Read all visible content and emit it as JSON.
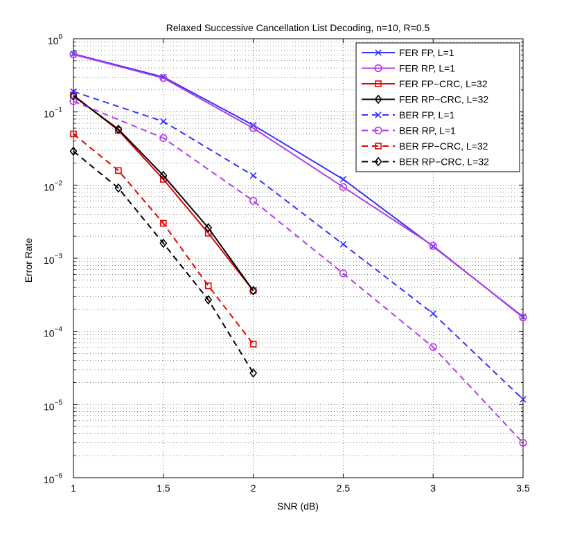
{
  "chart_data": {
    "type": "line",
    "title": "Relaxed Successive Cancellation List Decoding, n=10, R=0.5",
    "xlabel": "SNR (dB)",
    "ylabel": "Error Rate",
    "xlim": [
      1,
      3.5
    ],
    "ylim": [
      1e-06,
      1
    ],
    "yscale": "log",
    "grid": true,
    "legend_position": "top-right",
    "xticks": [
      {
        "value": 1,
        "label": "1"
      },
      {
        "value": 1.5,
        "label": "1.5"
      },
      {
        "value": 2,
        "label": "2"
      },
      {
        "value": 2.5,
        "label": "2.5"
      },
      {
        "value": 3,
        "label": "3"
      },
      {
        "value": 3.5,
        "label": "3.5"
      }
    ],
    "yticks": [
      {
        "exp": -6,
        "base": "10",
        "sup": "−6"
      },
      {
        "exp": -5,
        "base": "10",
        "sup": "−5"
      },
      {
        "exp": -4,
        "base": "10",
        "sup": "−4"
      },
      {
        "exp": -3,
        "base": "10",
        "sup": "−3"
      },
      {
        "exp": -2,
        "base": "10",
        "sup": "−2"
      },
      {
        "exp": -1,
        "base": "10",
        "sup": "−1"
      },
      {
        "exp": 0,
        "base": "10",
        "sup": "0"
      }
    ],
    "series": [
      {
        "name": "FER FP, L=1",
        "color": "#3333ff",
        "dash": "solid",
        "marker": "x",
        "x": [
          1,
          1.5,
          2,
          2.5,
          3,
          3.5
        ],
        "y": [
          0.62,
          0.3,
          0.066,
          0.012,
          0.00145,
          0.000158
        ]
      },
      {
        "name": "FER RP, L=1",
        "color": "#b43ce6",
        "dash": "solid",
        "marker": "o",
        "x": [
          1,
          1.5,
          2,
          2.5,
          3,
          3.5
        ],
        "y": [
          0.61,
          0.29,
          0.06,
          0.0094,
          0.00148,
          0.000155
        ]
      },
      {
        "name": "FER FP−CRC, L=32",
        "color": "#e60000",
        "dash": "solid",
        "marker": "s",
        "x": [
          1,
          1.25,
          1.5,
          1.75,
          2
        ],
        "y": [
          0.17,
          0.056,
          0.012,
          0.0022,
          0.00036
        ]
      },
      {
        "name": "FER RP−CRC, L=32",
        "color": "#000000",
        "dash": "solid",
        "marker": "d",
        "x": [
          1,
          1.25,
          1.5,
          1.75,
          2
        ],
        "y": [
          0.165,
          0.058,
          0.0135,
          0.0026,
          0.00036
        ]
      },
      {
        "name": "BER FP, L=1",
        "color": "#3333ff",
        "dash": "dashed",
        "marker": "x",
        "x": [
          1,
          1.5,
          2,
          2.5,
          3,
          3.5
        ],
        "y": [
          0.19,
          0.074,
          0.0135,
          0.00155,
          0.000175,
          1.18e-05
        ]
      },
      {
        "name": "BER RP, L=1",
        "color": "#b43ce6",
        "dash": "dashed",
        "marker": "o",
        "x": [
          1,
          1.5,
          2,
          2.5,
          3,
          3.5
        ],
        "y": [
          0.14,
          0.044,
          0.0061,
          0.00062,
          6.1e-05,
          3e-06
        ]
      },
      {
        "name": "BER FP−CRC, L=32",
        "color": "#e60000",
        "dash": "dashed",
        "marker": "s",
        "x": [
          1,
          1.25,
          1.5,
          1.75,
          2
        ],
        "y": [
          0.05,
          0.0158,
          0.003,
          0.00042,
          6.7e-05
        ]
      },
      {
        "name": "BER RP−CRC, L=32",
        "color": "#000000",
        "dash": "dashed",
        "marker": "d",
        "x": [
          1,
          1.25,
          1.5,
          1.75,
          2
        ],
        "y": [
          0.029,
          0.0091,
          0.0016,
          0.00027,
          2.7e-05
        ]
      }
    ]
  }
}
